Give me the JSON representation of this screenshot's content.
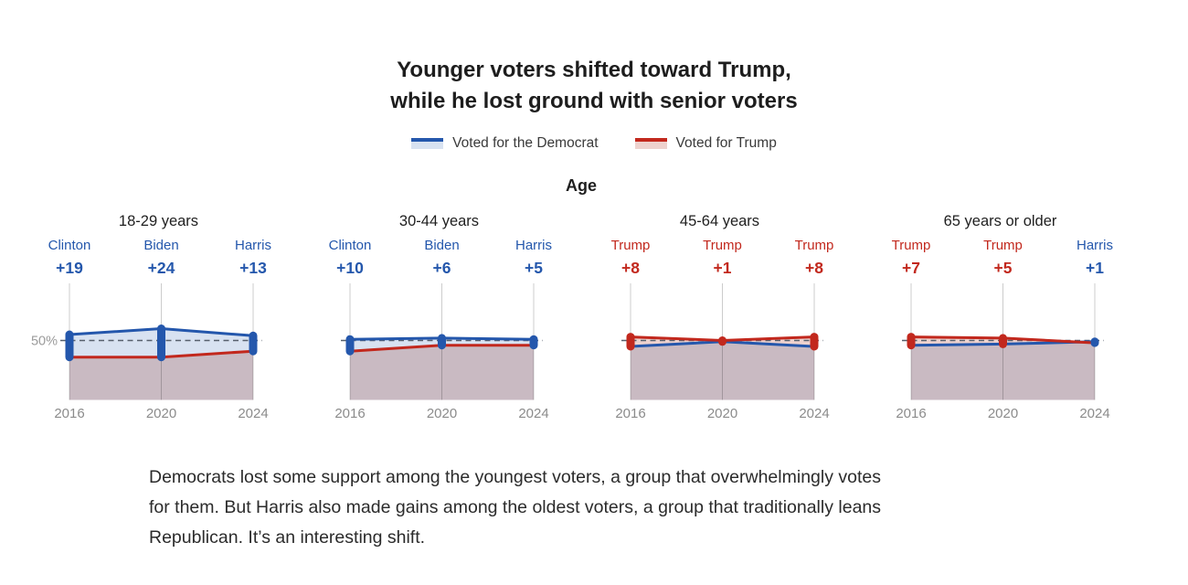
{
  "title": {
    "line1": "Younger voters shifted toward Trump,",
    "line2": "while he lost ground with senior voters"
  },
  "legend": {
    "dem": "Voted for the Democrat",
    "rep": "Voted for Trump"
  },
  "group_heading": "Age",
  "colors": {
    "dem": "#2457ac",
    "rep": "#c2281d",
    "dem_fill": "#d8e2f1",
    "rep_fill": "#eed2ce",
    "grid": "#cccccc",
    "dash": "#565f6c",
    "year_text": "#8b8b8b",
    "fifty_text": "#9b9b9b"
  },
  "chart_data": [
    {
      "type": "area",
      "title": "18-29 years",
      "x": [
        "2016",
        "2020",
        "2024"
      ],
      "winners": [
        {
          "name": "Clinton",
          "margin": "+19",
          "party": "dem"
        },
        {
          "name": "Biden",
          "margin": "+24",
          "party": "dem"
        },
        {
          "name": "Harris",
          "margin": "+13",
          "party": "dem"
        }
      ],
      "series": [
        {
          "name": "Voted for the Democrat",
          "party": "dem",
          "values": [
            55,
            60,
            54
          ]
        },
        {
          "name": "Voted for Trump",
          "party": "rep",
          "values": [
            36,
            36,
            41
          ]
        }
      ],
      "ylim": [
        0,
        100
      ],
      "gridline": {
        "value": 50,
        "label": "50%"
      }
    },
    {
      "type": "area",
      "title": "30-44 years",
      "x": [
        "2016",
        "2020",
        "2024"
      ],
      "winners": [
        {
          "name": "Clinton",
          "margin": "+10",
          "party": "dem"
        },
        {
          "name": "Biden",
          "margin": "+6",
          "party": "dem"
        },
        {
          "name": "Harris",
          "margin": "+5",
          "party": "dem"
        }
      ],
      "series": [
        {
          "name": "Voted for the Democrat",
          "party": "dem",
          "values": [
            51,
            52,
            51
          ]
        },
        {
          "name": "Voted for Trump",
          "party": "rep",
          "values": [
            41,
            46,
            46
          ]
        }
      ],
      "ylim": [
        0,
        100
      ],
      "gridline": {
        "value": 50,
        "label": ""
      }
    },
    {
      "type": "area",
      "title": "45-64 years",
      "x": [
        "2016",
        "2020",
        "2024"
      ],
      "winners": [
        {
          "name": "Trump",
          "margin": "+8",
          "party": "rep"
        },
        {
          "name": "Trump",
          "margin": "+1",
          "party": "rep"
        },
        {
          "name": "Trump",
          "margin": "+8",
          "party": "rep"
        }
      ],
      "series": [
        {
          "name": "Voted for the Democrat",
          "party": "dem",
          "values": [
            45,
            49,
            45
          ]
        },
        {
          "name": "Voted for Trump",
          "party": "rep",
          "values": [
            53,
            50,
            53
          ]
        }
      ],
      "ylim": [
        0,
        100
      ],
      "gridline": {
        "value": 50,
        "label": ""
      }
    },
    {
      "type": "area",
      "title": "65 years or older",
      "x": [
        "2016",
        "2020",
        "2024"
      ],
      "winners": [
        {
          "name": "Trump",
          "margin": "+7",
          "party": "rep"
        },
        {
          "name": "Trump",
          "margin": "+5",
          "party": "rep"
        },
        {
          "name": "Harris",
          "margin": "+1",
          "party": "dem"
        }
      ],
      "series": [
        {
          "name": "Voted for the Democrat",
          "party": "dem",
          "values": [
            46,
            47,
            49
          ]
        },
        {
          "name": "Voted for Trump",
          "party": "rep",
          "values": [
            53,
            52,
            48
          ]
        }
      ],
      "ylim": [
        0,
        100
      ],
      "gridline": {
        "value": 50,
        "label": ""
      }
    }
  ],
  "caption": {
    "lines": [
      "Democrats lost some support among the youngest voters, a group that overwhelmingly votes",
      "for them. But Harris also made gains among the oldest voters, a group that traditionally leans",
      "Republican. It’s an interesting shift."
    ]
  }
}
